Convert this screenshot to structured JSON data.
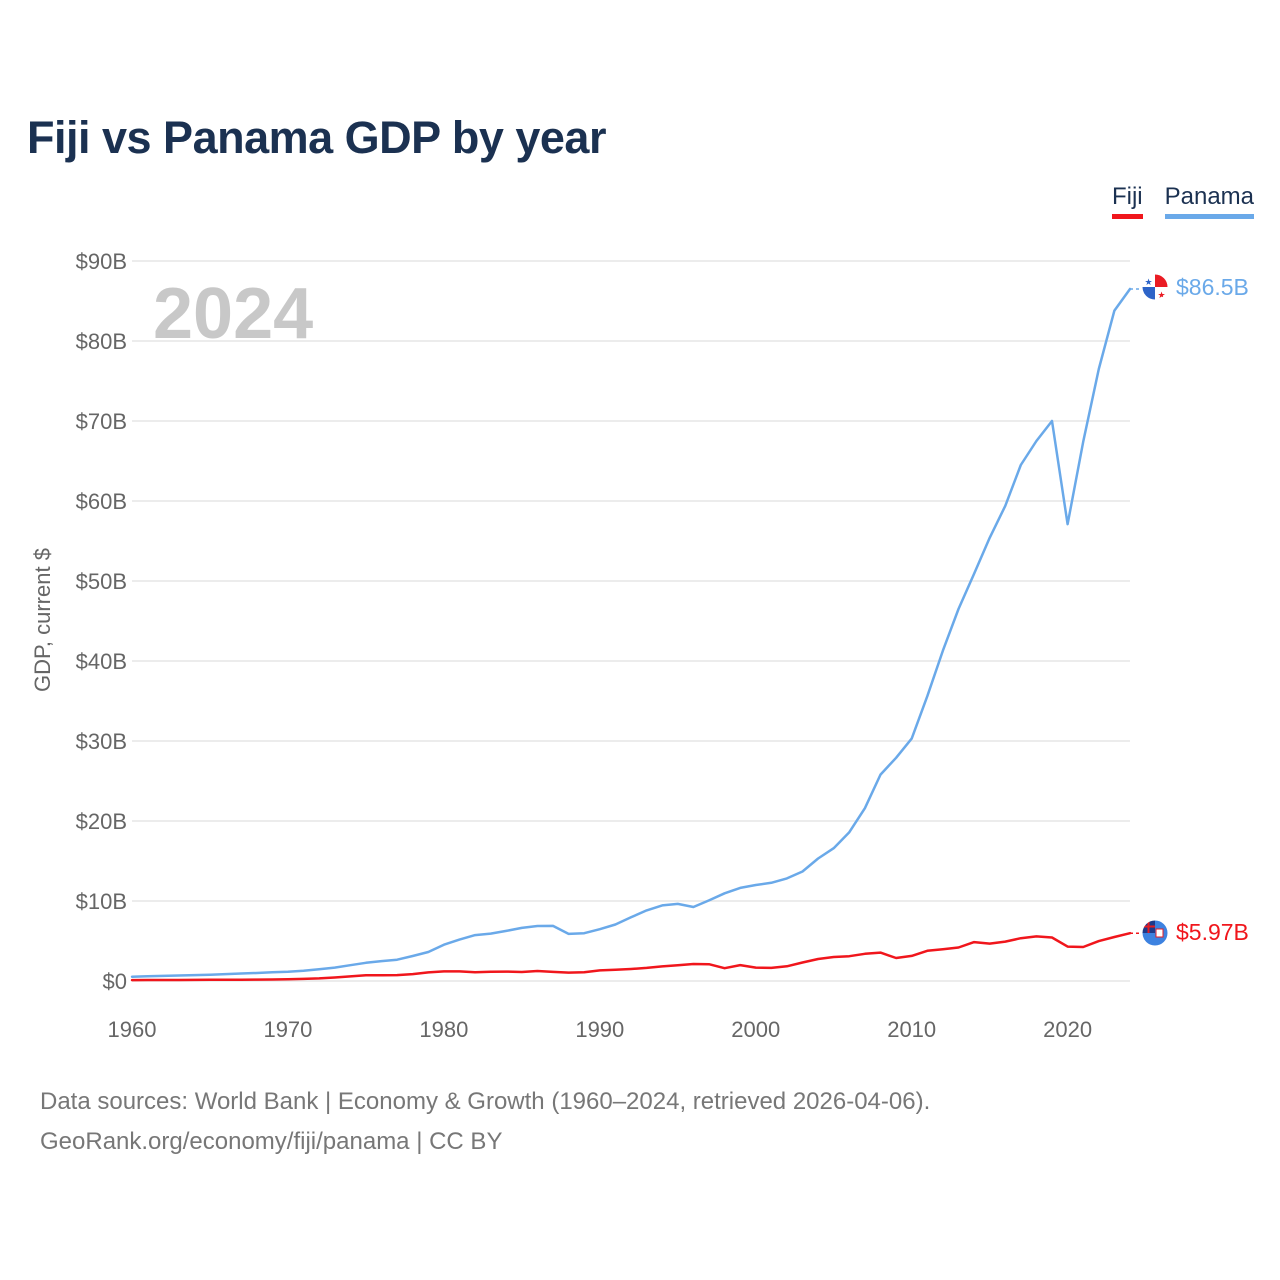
{
  "page": {
    "title": "Fiji vs Panama GDP by year",
    "year_watermark": "2024",
    "source_line1": "Data sources: World Bank | Economy & Growth (1960–2024, retrieved 2026-04-06).",
    "source_line2": "GeoRank.org/economy/fiji/panama | CC BY"
  },
  "legend": {
    "fiji_label": "Fiji",
    "panama_label": "Panama"
  },
  "colors": {
    "fiji": "#f0161c",
    "panama": "#6aa9e9",
    "grid": "#e6e6e6",
    "axis_text": "#666666",
    "watermark": "#c8c8c8"
  },
  "chart_data": {
    "type": "line",
    "title": "Fiji vs Panama GDP by year",
    "xlabel": "",
    "ylabel": "GDP, current $",
    "xlim": [
      1960,
      2024
    ],
    "ylim": [
      0,
      90
    ],
    "x_ticks": [
      1960,
      1970,
      1980,
      1990,
      2000,
      2010,
      2020
    ],
    "y_ticks": [
      0,
      10,
      20,
      30,
      40,
      50,
      60,
      70,
      80,
      90
    ],
    "y_tick_labels": [
      "$0",
      "$10B",
      "$20B",
      "$30B",
      "$40B",
      "$50B",
      "$60B",
      "$70B",
      "$80B",
      "$90B"
    ],
    "units": "billions of current US$",
    "grid": true,
    "legend_position": "top-right",
    "years": [
      1960,
      1961,
      1962,
      1963,
      1964,
      1965,
      1966,
      1967,
      1968,
      1969,
      1970,
      1971,
      1972,
      1973,
      1974,
      1975,
      1976,
      1977,
      1978,
      1979,
      1980,
      1981,
      1982,
      1983,
      1984,
      1985,
      1986,
      1987,
      1988,
      1989,
      1990,
      1991,
      1992,
      1993,
      1994,
      1995,
      1996,
      1997,
      1998,
      1999,
      2000,
      2001,
      2002,
      2003,
      2004,
      2005,
      2006,
      2007,
      2008,
      2009,
      2010,
      2011,
      2012,
      2013,
      2014,
      2015,
      2016,
      2017,
      2018,
      2019,
      2020,
      2021,
      2022,
      2023,
      2024
    ],
    "series": [
      {
        "name": "Fiji",
        "color": "#f0161c",
        "end_label": "$5.97B",
        "values": [
          0.11,
          0.12,
          0.12,
          0.13,
          0.14,
          0.15,
          0.15,
          0.16,
          0.17,
          0.19,
          0.22,
          0.26,
          0.33,
          0.44,
          0.58,
          0.72,
          0.72,
          0.74,
          0.86,
          1.07,
          1.2,
          1.2,
          1.1,
          1.15,
          1.18,
          1.12,
          1.25,
          1.14,
          1.05,
          1.1,
          1.32,
          1.4,
          1.5,
          1.64,
          1.83,
          1.97,
          2.12,
          2.1,
          1.6,
          1.99,
          1.68,
          1.64,
          1.84,
          2.31,
          2.75,
          3.0,
          3.1,
          3.4,
          3.55,
          2.87,
          3.14,
          3.78,
          3.97,
          4.19,
          4.86,
          4.68,
          4.93,
          5.35,
          5.58,
          5.44,
          4.3,
          4.25,
          4.99,
          5.5,
          5.97
        ]
      },
      {
        "name": "Panama",
        "color": "#6aa9e9",
        "end_label": "$86.5B",
        "values": [
          0.54,
          0.59,
          0.64,
          0.69,
          0.74,
          0.79,
          0.86,
          0.94,
          1.0,
          1.09,
          1.16,
          1.29,
          1.47,
          1.68,
          1.97,
          2.28,
          2.49,
          2.66,
          3.12,
          3.62,
          4.54,
          5.17,
          5.74,
          5.93,
          6.26,
          6.64,
          6.87,
          6.89,
          5.89,
          5.97,
          6.47,
          7.06,
          7.96,
          8.82,
          9.45,
          9.64,
          9.25,
          10.08,
          10.96,
          11.64,
          12.0,
          12.27,
          12.83,
          13.69,
          15.31,
          16.6,
          18.6,
          21.6,
          25.8,
          27.9,
          30.3,
          35.6,
          41.3,
          46.5,
          50.9,
          55.4,
          59.4,
          64.5,
          67.5,
          70.0,
          57.1,
          67.4,
          76.5,
          83.8,
          86.5
        ]
      }
    ]
  }
}
